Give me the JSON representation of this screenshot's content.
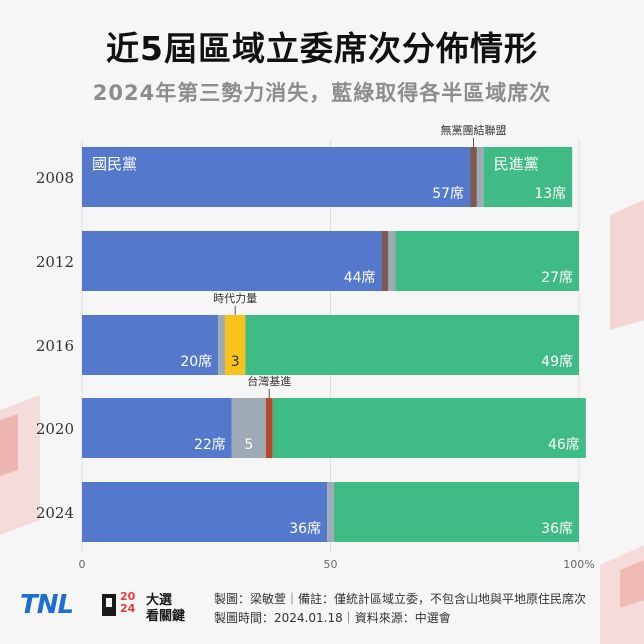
{
  "header": {
    "title": "近5屆區域立委席次分佈情形",
    "subtitle": "2024年第三勢力消失，藍綠取得各半區域席次"
  },
  "colors": {
    "kmt": "#5479cc",
    "dpp": "#3fbb85",
    "other_grey": "#9eabb5",
    "npsu": "#7a5a52",
    "npp": "#f7c21a",
    "tsp": "#b5492a",
    "text_white": "#ffffff",
    "accent_red": "#e23b3b"
  },
  "chart_data": {
    "type": "bar",
    "orientation": "horizontal",
    "stacked": true,
    "title": "近5屆區域立委席次分佈情形",
    "subtitle": "2024年第三勢力消失，藍綠取得各半區域席次",
    "unit": "席",
    "categories": [
      "2008",
      "2012",
      "2016",
      "2020",
      "2024"
    ],
    "xlim": [
      0,
      73
    ],
    "xticks": [
      {
        "value": 0,
        "label": "0"
      },
      {
        "value": 36.5,
        "label": "50"
      },
      {
        "value": 73,
        "label": "100%"
      }
    ],
    "series": [
      {
        "name": "國民黨",
        "values": [
          57,
          44,
          20,
          22,
          36
        ]
      },
      {
        "name": "無黨團結聯盟",
        "values": [
          1,
          1,
          0,
          0,
          0
        ]
      },
      {
        "name": "other_independent",
        "values": [
          1,
          1,
          1,
          0,
          1
        ]
      },
      {
        "name": "時代力量",
        "values": [
          0,
          0,
          3,
          0,
          0
        ]
      },
      {
        "name": "other_grey",
        "values": [
          0,
          0,
          0,
          5,
          0
        ]
      },
      {
        "name": "台灣基進",
        "values": [
          0,
          0,
          0,
          1,
          0
        ]
      },
      {
        "name": "民進黨",
        "values": [
          13,
          27,
          49,
          46,
          36
        ]
      }
    ],
    "series_colors": [
      "#5479cc",
      "#7a5a52",
      "#9eabb5",
      "#f7c21a",
      "#9eabb5",
      "#b5492a",
      "#3fbb85"
    ],
    "in_bar_labels": [
      {
        "row": 0,
        "series": 0,
        "text": "國民黨",
        "align": "start-top"
      },
      {
        "row": 0,
        "series": 6,
        "text": "民進黨",
        "align": "start-top"
      },
      {
        "row": 0,
        "series": 0,
        "text": "57席",
        "align": "end-bottom"
      },
      {
        "row": 0,
        "series": 6,
        "text": "13席",
        "align": "end-bottom"
      },
      {
        "row": 1,
        "series": 0,
        "text": "44席",
        "align": "end-bottom"
      },
      {
        "row": 1,
        "series": 6,
        "text": "27席",
        "align": "end-bottom"
      },
      {
        "row": 2,
        "series": 0,
        "text": "20席",
        "align": "end-bottom"
      },
      {
        "row": 2,
        "series": 3,
        "text": "3",
        "align": "center-bottom",
        "dark": true
      },
      {
        "row": 2,
        "series": 6,
        "text": "49席",
        "align": "end-bottom"
      },
      {
        "row": 3,
        "series": 0,
        "text": "22席",
        "align": "end-bottom"
      },
      {
        "row": 3,
        "series": 4,
        "text": "5",
        "align": "center-bottom"
      },
      {
        "row": 3,
        "series": 6,
        "text": "46席",
        "align": "end-bottom"
      },
      {
        "row": 4,
        "series": 0,
        "text": "36席",
        "align": "end-bottom"
      },
      {
        "row": 4,
        "series": 6,
        "text": "36席",
        "align": "end-bottom"
      }
    ],
    "callouts": [
      {
        "row": 0,
        "series": 1,
        "text": "無黨團結聯盟"
      },
      {
        "row": 2,
        "series": 3,
        "text": "時代力量"
      },
      {
        "row": 3,
        "series": 5,
        "text": "台灣基進"
      }
    ]
  },
  "footer": {
    "brand_tnl": "TNL",
    "brand_year": "2024",
    "brand_name_top": "大選",
    "brand_name_bottom": "看關鍵",
    "credit_line1": "製圖：梁敏萱｜備註：僅統計區域立委，不包含山地與平地原住民席次",
    "credit_line2": "製圖時間：2024.01.18｜資料來源：中選會"
  }
}
